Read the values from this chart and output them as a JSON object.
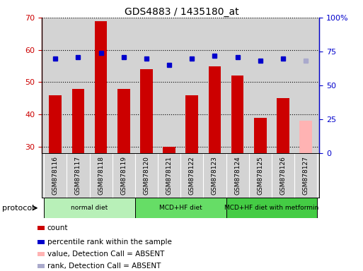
{
  "title": "GDS4883 / 1435180_at",
  "samples": [
    "GSM878116",
    "GSM878117",
    "GSM878118",
    "GSM878119",
    "GSM878120",
    "GSM878121",
    "GSM878122",
    "GSM878123",
    "GSM878124",
    "GSM878125",
    "GSM878126",
    "GSM878127"
  ],
  "count_values": [
    46,
    48,
    69,
    48,
    54,
    30,
    46,
    55,
    52,
    39,
    45,
    38
  ],
  "count_absent": [
    false,
    false,
    false,
    false,
    false,
    false,
    false,
    false,
    false,
    false,
    false,
    true
  ],
  "percentile_values": [
    70,
    71,
    74,
    71,
    70,
    65,
    70,
    72,
    71,
    68,
    70,
    68
  ],
  "percentile_absent": [
    false,
    false,
    false,
    false,
    false,
    false,
    false,
    false,
    false,
    false,
    false,
    true
  ],
  "ylim_left": [
    28,
    70
  ],
  "ylim_right": [
    0,
    100
  ],
  "yticks_left": [
    30,
    40,
    50,
    60,
    70
  ],
  "yticks_right": [
    0,
    25,
    50,
    75,
    100
  ],
  "ytick_right_labels": [
    "0",
    "25",
    "50",
    "75",
    "100%"
  ],
  "bar_color": "#cc0000",
  "bar_absent_color": "#ffb3b3",
  "dot_color": "#0000cc",
  "dot_absent_color": "#aaaacc",
  "plot_bg_color": "#d3d3d3",
  "tick_label_bg": "#d3d3d3",
  "protocol_colors": [
    "#b8f0b8",
    "#66dd66",
    "#44cc44"
  ],
  "protocol_groups": [
    {
      "label": "normal diet",
      "start": 0,
      "end": 3
    },
    {
      "label": "MCD+HF diet",
      "start": 4,
      "end": 7
    },
    {
      "label": "MCD+HF diet with metformin",
      "start": 8,
      "end": 11
    }
  ],
  "legend_items": [
    {
      "label": "count",
      "color": "#cc0000"
    },
    {
      "label": "percentile rank within the sample",
      "color": "#0000cc"
    },
    {
      "label": "value, Detection Call = ABSENT",
      "color": "#ffb3b3"
    },
    {
      "label": "rank, Detection Call = ABSENT",
      "color": "#aaaacc"
    }
  ],
  "protocol_label": "protocol"
}
